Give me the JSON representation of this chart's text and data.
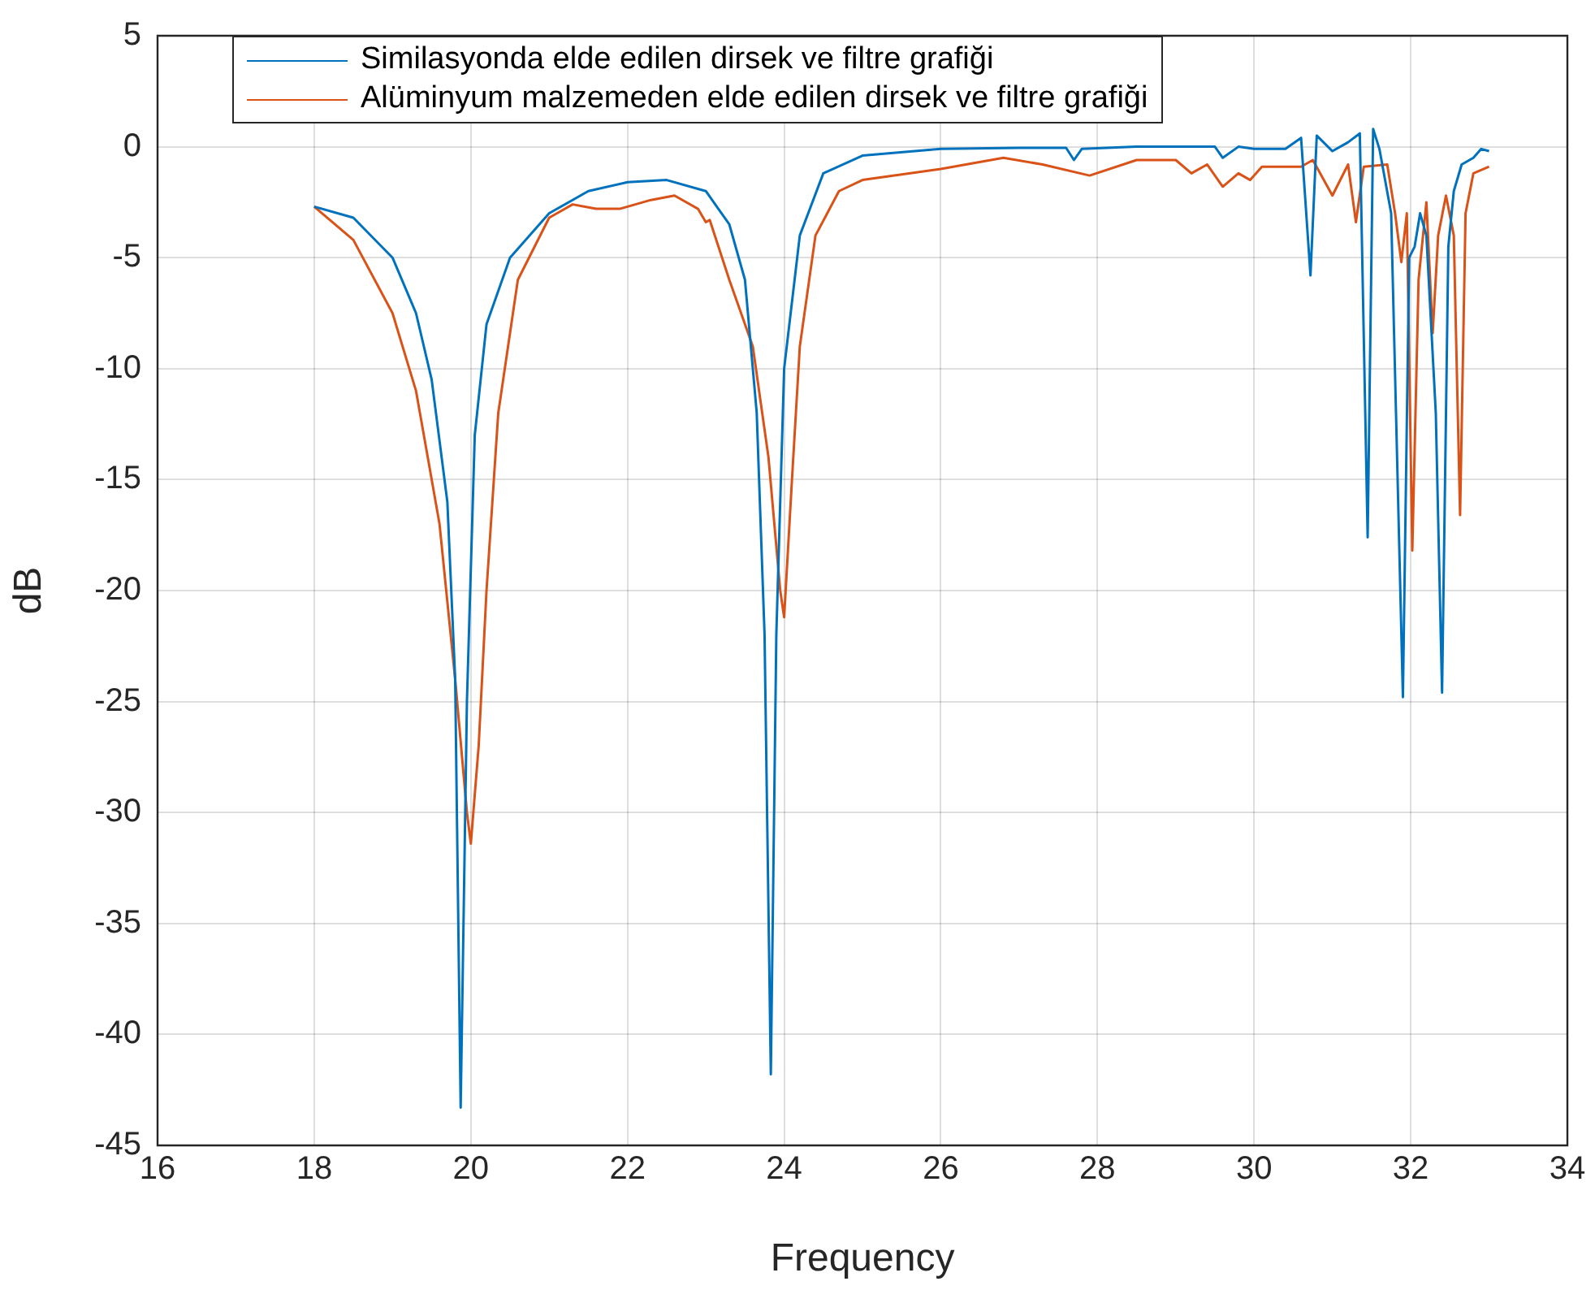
{
  "chart_data": {
    "type": "line",
    "xlabel": "Frequency",
    "ylabel": "dB",
    "xlim": [
      16,
      34
    ],
    "xticks": [
      16,
      18,
      20,
      22,
      24,
      26,
      28,
      30,
      32,
      34
    ],
    "ylim": [
      -45,
      5
    ],
    "yticks": [
      -45,
      -40,
      -35,
      -30,
      -25,
      -20,
      -15,
      -10,
      -5,
      0,
      5
    ],
    "grid": true,
    "legend": "top left",
    "marker": "none",
    "line_style": "solid",
    "series": [
      {
        "name": "Similasyonda elde edilen dirsek ve filtre grafiği",
        "color": "#0072bd",
        "x": [
          18.0,
          18.5,
          19.0,
          19.3,
          19.5,
          19.7,
          19.8,
          19.87,
          19.95,
          20.05,
          20.2,
          20.5,
          21.0,
          21.5,
          22.0,
          22.5,
          23.0,
          23.3,
          23.5,
          23.65,
          23.75,
          23.83,
          23.9,
          24.0,
          24.2,
          24.5,
          25.0,
          26,
          27,
          27.6,
          27.7,
          27.8,
          28.5,
          29.5,
          29.6,
          29.8,
          30.0,
          30.4,
          30.6,
          30.72,
          30.8,
          31.0,
          31.2,
          31.35,
          31.45,
          31.52,
          31.6,
          31.75,
          31.9,
          31.98,
          32.05,
          32.12,
          32.2,
          32.32,
          32.4,
          32.48,
          32.55,
          32.65,
          32.8,
          32.9,
          33.0
        ],
        "values": [
          -2.7,
          -3.2,
          -5.0,
          -7.5,
          -10.5,
          -16,
          -24,
          -43.3,
          -25,
          -13,
          -8,
          -5,
          -3,
          -2,
          -1.6,
          -1.5,
          -2,
          -3.5,
          -6,
          -12,
          -22,
          -41.8,
          -22,
          -10,
          -4,
          -1.2,
          -0.4,
          -0.1,
          -0.05,
          -0.05,
          -0.6,
          -0.1,
          0,
          0,
          -0.5,
          0,
          -0.1,
          -0.1,
          0.4,
          -5.8,
          0.5,
          -0.2,
          0.2,
          0.6,
          -17.6,
          0.8,
          -0.1,
          -3,
          -24.8,
          -5,
          -4.5,
          -3,
          -4,
          -12,
          -24.6,
          -4.5,
          -2,
          -0.8,
          -0.5,
          -0.1,
          -0.2
        ]
      },
      {
        "name": "Alüminyum malzemeden elde edilen dirsek ve filtre grafiği",
        "color": "#d95319",
        "x": [
          18.0,
          18.5,
          19.0,
          19.3,
          19.6,
          19.8,
          19.95,
          20.0,
          20.1,
          20.2,
          20.35,
          20.6,
          21.0,
          21.3,
          21.6,
          21.9,
          22.3,
          22.6,
          22.9,
          23.0,
          23.05,
          23.3,
          23.6,
          23.8,
          23.95,
          24.0,
          24.1,
          24.2,
          24.4,
          24.7,
          25.0,
          26,
          26.8,
          27.3,
          27.9,
          28.5,
          29.0,
          29.2,
          29.4,
          29.6,
          29.8,
          29.95,
          30.1,
          30.6,
          30.75,
          31.0,
          31.2,
          31.3,
          31.4,
          31.7,
          31.8,
          31.88,
          31.95,
          32.02,
          32.1,
          32.2,
          32.28,
          32.35,
          32.45,
          32.55,
          32.63,
          32.7,
          32.8,
          33.0
        ],
        "values": [
          -2.7,
          -4.2,
          -7.5,
          -11,
          -17,
          -24,
          -30,
          -31.4,
          -27,
          -20,
          -12,
          -6,
          -3.2,
          -2.6,
          -2.8,
          -2.8,
          -2.4,
          -2.2,
          -2.8,
          -3.4,
          -3.3,
          -6,
          -9,
          -14,
          -20,
          -21.2,
          -15,
          -9,
          -4,
          -2,
          -1.5,
          -1.0,
          -0.5,
          -0.8,
          -1.3,
          -0.6,
          -0.6,
          -1.2,
          -0.8,
          -1.8,
          -1.2,
          -1.5,
          -0.9,
          -0.9,
          -0.6,
          -2.2,
          -0.8,
          -3.4,
          -0.9,
          -0.8,
          -3,
          -5.2,
          -3,
          -18.2,
          -6,
          -2.5,
          -8.4,
          -4,
          -2.2,
          -4,
          -16.6,
          -3,
          -1.2,
          -0.9
        ]
      }
    ]
  }
}
